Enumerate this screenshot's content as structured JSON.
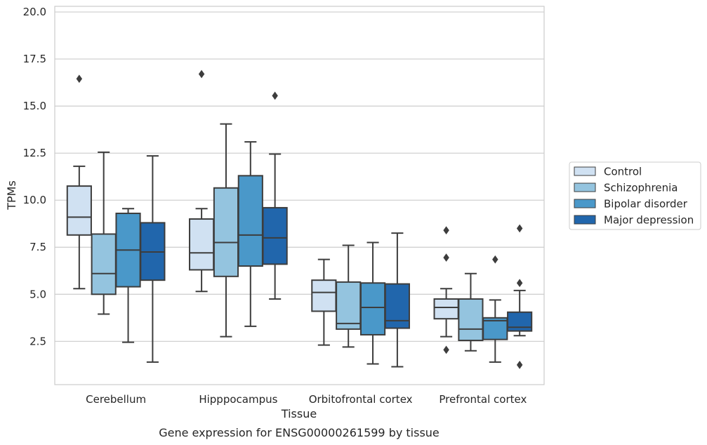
{
  "caption": "Gene expression for ENSG00000261599 by tissue",
  "chart_data": {
    "type": "box",
    "xlabel": "Tissue",
    "ylabel": "TPMs",
    "ylim": [
      0.2,
      20.3
    ],
    "yticks": [
      2.5,
      5.0,
      7.5,
      10.0,
      12.5,
      15.0,
      17.5,
      20.0
    ],
    "ytick_labels": [
      "2.5",
      "5.0",
      "7.5",
      "10.0",
      "12.5",
      "15.0",
      "17.5",
      "20.0"
    ],
    "grid": "horizontal",
    "legend_position": "right",
    "categories": [
      "Cerebellum",
      "Hipppocampus",
      "Orbitofrontal cortex",
      "Prefrontal cortex"
    ],
    "series": [
      {
        "name": "Control",
        "color": "#d0e1f2",
        "boxes": [
          {
            "min": 5.3,
            "q1": 8.15,
            "median": 9.1,
            "q3": 10.75,
            "max": 11.8,
            "outliers": [
              16.45
            ]
          },
          {
            "min": 5.15,
            "q1": 6.3,
            "median": 7.2,
            "q3": 9.0,
            "max": 9.55,
            "outliers": [
              16.7
            ]
          },
          {
            "min": 2.3,
            "q1": 4.1,
            "median": 5.1,
            "q3": 5.75,
            "max": 6.85,
            "outliers": []
          },
          {
            "min": 2.75,
            "q1": 3.7,
            "median": 4.3,
            "q3": 4.75,
            "max": 5.3,
            "outliers": [
              8.4,
              6.95,
              2.05
            ]
          }
        ]
      },
      {
        "name": "Schizophrenia",
        "color": "#94c4df",
        "boxes": [
          {
            "min": 3.95,
            "q1": 5.0,
            "median": 6.1,
            "q3": 8.2,
            "max": 12.55,
            "outliers": []
          },
          {
            "min": 2.75,
            "q1": 5.95,
            "median": 7.75,
            "q3": 10.65,
            "max": 14.05,
            "outliers": []
          },
          {
            "min": 2.2,
            "q1": 3.15,
            "median": 3.45,
            "q3": 5.65,
            "max": 7.6,
            "outliers": []
          },
          {
            "min": 2.0,
            "q1": 2.55,
            "median": 3.15,
            "q3": 4.75,
            "max": 6.1,
            "outliers": []
          }
        ]
      },
      {
        "name": "Bipolar disorder",
        "color": "#4a98c9",
        "boxes": [
          {
            "min": 2.45,
            "q1": 5.4,
            "median": 7.35,
            "q3": 9.3,
            "max": 9.55,
            "outliers": []
          },
          {
            "min": 3.3,
            "q1": 6.5,
            "median": 8.15,
            "q3": 11.3,
            "max": 13.1,
            "outliers": []
          },
          {
            "min": 1.3,
            "q1": 2.85,
            "median": 4.3,
            "q3": 5.6,
            "max": 7.75,
            "outliers": []
          },
          {
            "min": 1.4,
            "q1": 2.6,
            "median": 3.6,
            "q3": 3.75,
            "max": 4.7,
            "outliers": [
              6.85
            ]
          }
        ]
      },
      {
        "name": "Major depression",
        "color": "#2166ac",
        "boxes": [
          {
            "min": 1.4,
            "q1": 5.75,
            "median": 7.25,
            "q3": 8.8,
            "max": 12.35,
            "outliers": []
          },
          {
            "min": 4.75,
            "q1": 6.6,
            "median": 8.0,
            "q3": 9.6,
            "max": 12.45,
            "outliers": [
              15.55
            ]
          },
          {
            "min": 1.15,
            "q1": 3.2,
            "median": 3.6,
            "q3": 5.55,
            "max": 8.25,
            "outliers": []
          },
          {
            "min": 2.8,
            "q1": 3.05,
            "median": 3.25,
            "q3": 4.05,
            "max": 5.2,
            "outliers": [
              8.5,
              5.6,
              1.25
            ]
          }
        ]
      }
    ]
  }
}
